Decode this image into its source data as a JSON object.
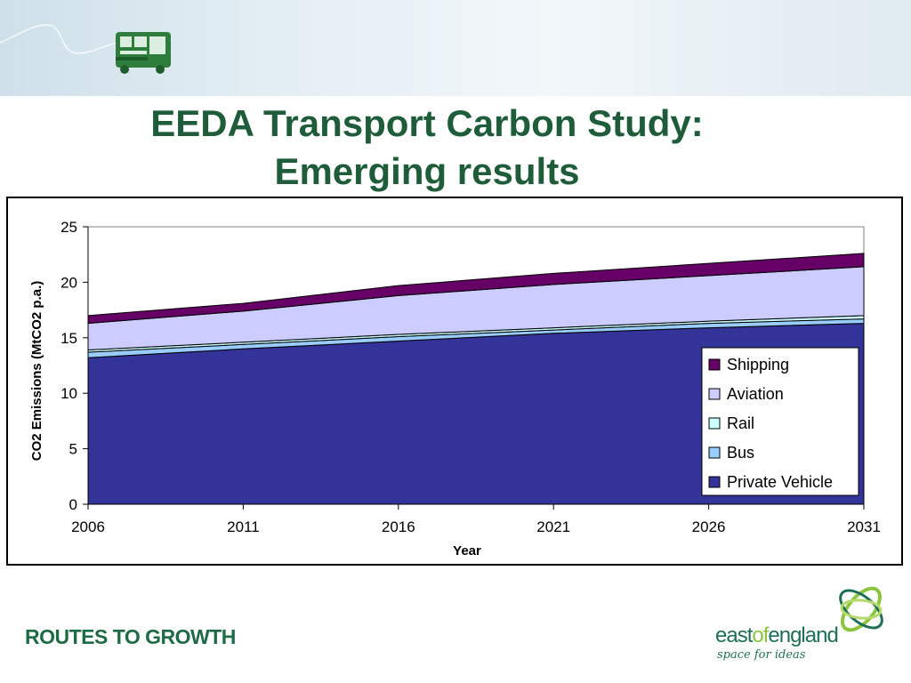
{
  "slide": {
    "title_line1": "EEDA Transport Carbon Study:",
    "title_line2": "Emerging results",
    "footer_brand": "ROUTES TO GROWTH",
    "logo": {
      "east": "east",
      "of": "of",
      "england": "england",
      "tagline": "space for ideas"
    },
    "colors": {
      "title": "#1e5c3a",
      "brand_green": "#1e6b46",
      "logo_light_green": "#8bc53f"
    },
    "icons": [
      "bus-icon",
      "east-of-england-swirl-icon"
    ]
  },
  "chart_data": {
    "type": "area",
    "stacked": true,
    "x": [
      2006,
      2011,
      2016,
      2021,
      2026,
      2031
    ],
    "xlabel": "Year",
    "ylabel": "CO2 Emissions (MtCO2 p.a.)",
    "ylim": [
      0,
      25
    ],
    "yticks": [
      0,
      5,
      10,
      15,
      20,
      25
    ],
    "grid": false,
    "legend_position": "right",
    "series": [
      {
        "name": "Private Vehicle",
        "color": "#333399",
        "values": [
          13.2,
          14.0,
          14.7,
          15.4,
          15.9,
          16.3
        ]
      },
      {
        "name": "Bus",
        "color": "#99ccff",
        "values": [
          0.5,
          0.4,
          0.4,
          0.3,
          0.4,
          0.4
        ]
      },
      {
        "name": "Rail",
        "color": "#ccffff",
        "values": [
          0.2,
          0.2,
          0.2,
          0.2,
          0.2,
          0.3
        ]
      },
      {
        "name": "Aviation",
        "color": "#ccccff",
        "values": [
          2.4,
          2.8,
          3.5,
          3.9,
          4.1,
          4.4
        ]
      },
      {
        "name": "Shipping",
        "color": "#660066",
        "values": [
          0.7,
          0.7,
          0.9,
          1.0,
          1.1,
          1.2
        ]
      }
    ]
  }
}
